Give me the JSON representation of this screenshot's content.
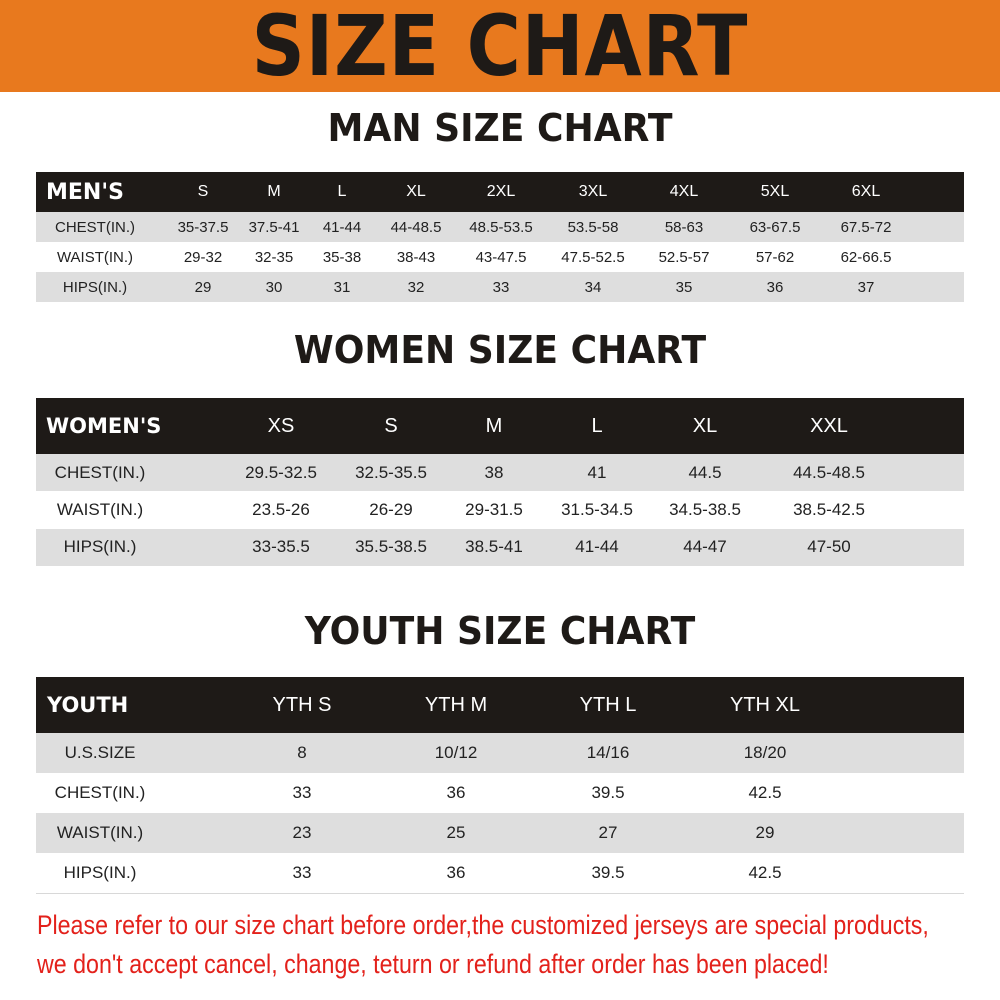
{
  "banner": {
    "title": "SIZE CHART",
    "color": "#E8791E"
  },
  "men": {
    "title": "MAN SIZE CHART",
    "header": [
      "MEN'S",
      "S",
      "M",
      "L",
      "XL",
      "2XL",
      "3XL",
      "4XL",
      "5XL",
      "6XL"
    ],
    "rows": [
      [
        "CHEST(IN.)",
        "35-37.5",
        "37.5-41",
        "41-44",
        "44-48.5",
        "48.5-53.5",
        "53.5-58",
        "58-63",
        "63-67.5",
        "67.5-72"
      ],
      [
        "WAIST(IN.)",
        "29-32",
        "32-35",
        "35-38",
        "38-43",
        "43-47.5",
        "47.5-52.5",
        "52.5-57",
        "57-62",
        "62-66.5"
      ],
      [
        "HIPS(IN.)",
        "29",
        "30",
        "31",
        "32",
        "33",
        "34",
        "35",
        "36",
        "37"
      ]
    ]
  },
  "women": {
    "title": "WOMEN SIZE CHART",
    "header": [
      "WOMEN'S",
      "XS",
      "S",
      "M",
      "L",
      "XL",
      "XXL"
    ],
    "rows": [
      [
        "CHEST(IN.)",
        "29.5-32.5",
        "32.5-35.5",
        "38",
        "41",
        "44.5",
        "44.5-48.5"
      ],
      [
        "WAIST(IN.)",
        "23.5-26",
        "26-29",
        "29-31.5",
        "31.5-34.5",
        "34.5-38.5",
        "38.5-42.5"
      ],
      [
        "HIPS(IN.)",
        "33-35.5",
        "35.5-38.5",
        "38.5-41",
        "41-44",
        "44-47",
        "47-50"
      ]
    ]
  },
  "youth": {
    "title": "YOUTH SIZE CHART",
    "header": [
      "YOUTH",
      "YTH S",
      "YTH M",
      "YTH L",
      "YTH XL"
    ],
    "rows": [
      [
        "U.S.SIZE",
        "8",
        "10/12",
        "14/16",
        "18/20"
      ],
      [
        "CHEST(IN.)",
        "33",
        "36",
        "39.5",
        "42.5"
      ],
      [
        "WAIST(IN.)",
        "23",
        "25",
        "27",
        "29"
      ],
      [
        "HIPS(IN.)",
        "33",
        "36",
        "39.5",
        "42.5"
      ]
    ]
  },
  "notice": {
    "line1": "Please refer to our size chart before order,the customized jerseys are special products,",
    "line2": "we don't accept cancel, change, teturn or refund after order has been placed!",
    "color": "#E3211B"
  }
}
